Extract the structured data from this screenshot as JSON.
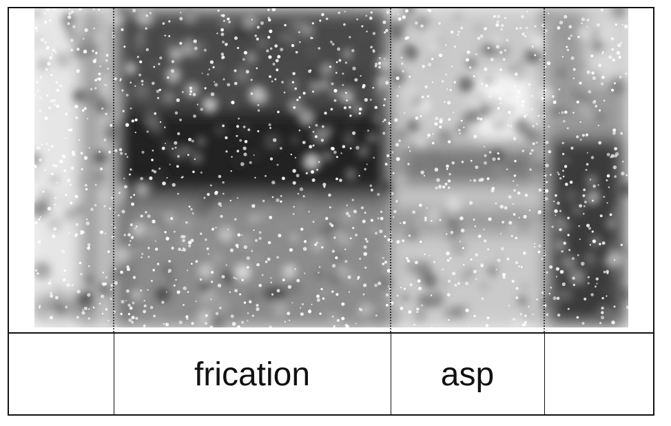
{
  "tiers": {
    "segments": [
      {
        "label": ""
      },
      {
        "label": "frication"
      },
      {
        "label": "asp"
      },
      {
        "label": ""
      }
    ]
  },
  "colors": {
    "ink": "#111111",
    "background": "#ffffff",
    "dark_energy": "#1a1a1a",
    "light_energy": "#f4f4f4"
  }
}
